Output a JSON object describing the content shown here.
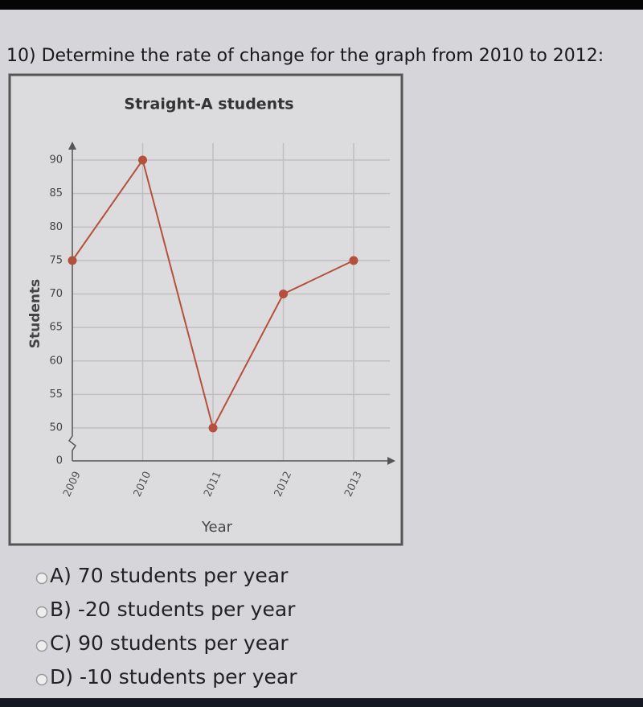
{
  "question": "10) Determine the rate of change for the graph from 2010 to 2012:",
  "chart_data": {
    "type": "line",
    "title": "Straight-A students",
    "x_label": "Year",
    "y_label": "Students",
    "categories": [
      "2009",
      "2010",
      "2011",
      "2012",
      "2013"
    ],
    "series": [
      {
        "name": "Straight-A students",
        "color": "#b5503c",
        "values": [
          75,
          90,
          50,
          70,
          75
        ]
      }
    ],
    "ylim": [
      0,
      90
    ],
    "yticks": [
      0,
      50,
      55,
      60,
      65,
      70,
      75,
      80,
      85,
      90
    ],
    "grid": true
  },
  "options": [
    "A) 70 students per year",
    "B) -20 students per year",
    "C) 90 students per year",
    "D) -10 students per year"
  ]
}
